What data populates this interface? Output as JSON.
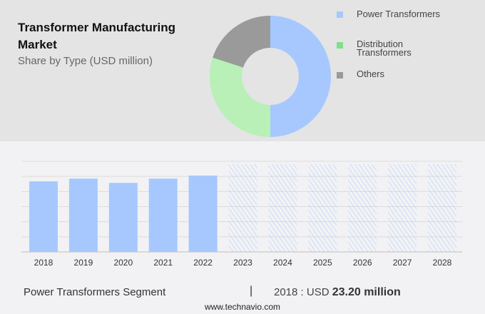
{
  "chart_data": [
    {
      "type": "pie",
      "title": "Transformer Manufacturing Market",
      "subtitle": "Share by Type (USD million)",
      "donut": true,
      "legend_position": "right",
      "slices": [
        {
          "name": "Power Transformers",
          "value": 50,
          "color": "#a6c8ff"
        },
        {
          "name": "Distribution Transformers",
          "value": 30,
          "color": "#b8f0b8"
        },
        {
          "name": "Others",
          "value": 20,
          "color": "#9a9a9a"
        }
      ],
      "legend_colors": [
        "#a6c8ff",
        "#7de08f",
        "#999999"
      ]
    },
    {
      "type": "bar",
      "categories": [
        "2018",
        "2019",
        "2020",
        "2021",
        "2022",
        "2023",
        "2024",
        "2025",
        "2026",
        "2027",
        "2028"
      ],
      "values": [
        23.2,
        24.1,
        22.7,
        24.1,
        25.1,
        null,
        null,
        null,
        null,
        null,
        null
      ],
      "forecast_categories": [
        "2023",
        "2024",
        "2025",
        "2026",
        "2027",
        "2028"
      ],
      "ylim": [
        0,
        29.8
      ],
      "grid": true,
      "color": "#a6c8ff"
    }
  ],
  "footer": {
    "segment": "Power Transformers Segment",
    "separator": "|",
    "year_label": "2018 : USD",
    "value": "23.20 million",
    "site": "www.technavio.com"
  }
}
